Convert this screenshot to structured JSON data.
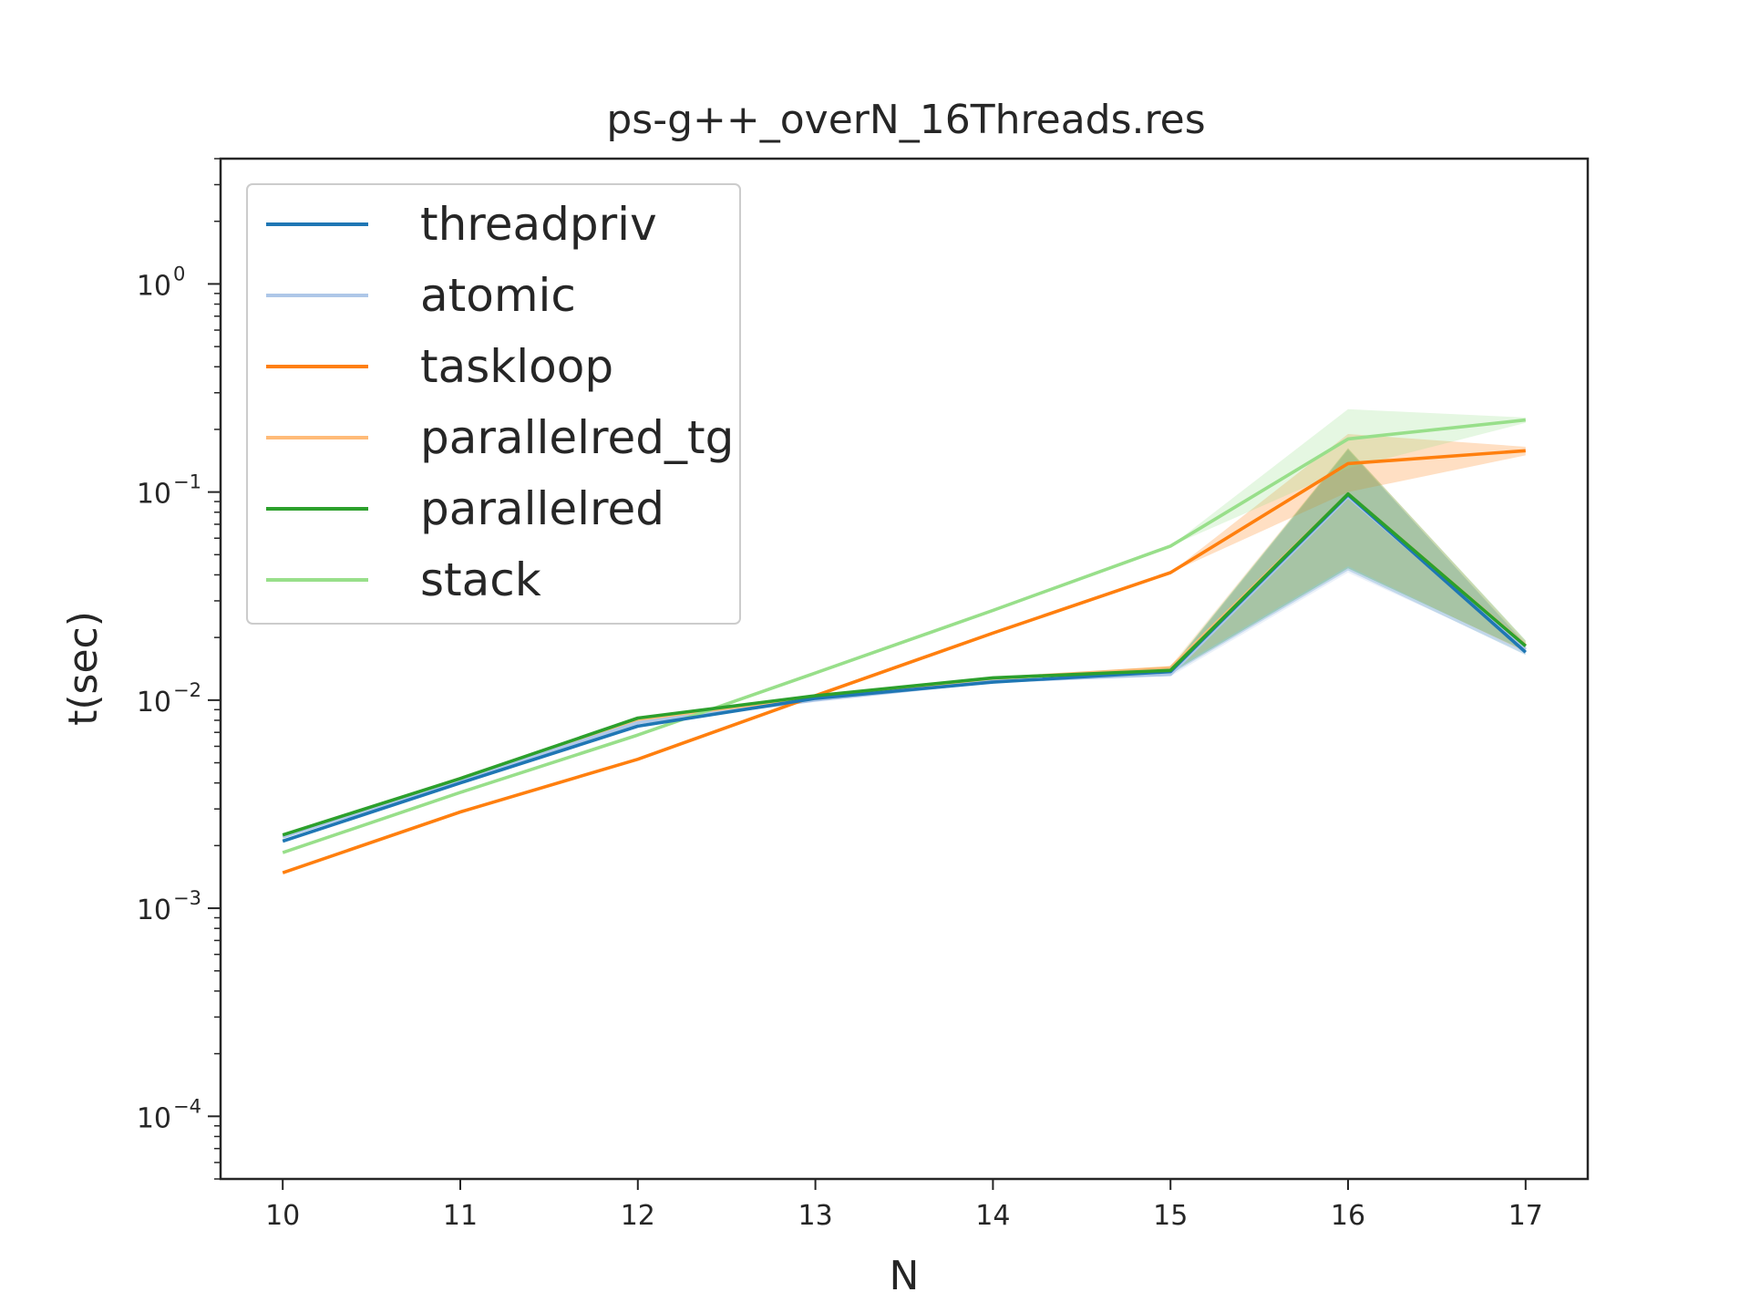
{
  "chart_data": {
    "type": "line",
    "title": "ps-g++_overN_16Threads.res",
    "xlabel": "N",
    "ylabel": "t(sec)",
    "yscale": "log",
    "xlim": [
      9.65,
      17.35
    ],
    "ylim": [
      5e-05,
      4.0
    ],
    "x": [
      10,
      11,
      12,
      13,
      14,
      15,
      16,
      17
    ],
    "x_ticks": [
      "10",
      "11",
      "12",
      "13",
      "14",
      "15",
      "16",
      "17"
    ],
    "y_ticks": [
      {
        "value": 0.0001,
        "base": "10",
        "exp": "−4"
      },
      {
        "value": 0.001,
        "base": "10",
        "exp": "−3"
      },
      {
        "value": 0.01,
        "base": "10",
        "exp": "−2"
      },
      {
        "value": 0.1,
        "base": "10",
        "exp": "−1"
      },
      {
        "value": 1,
        "base": "10",
        "exp": "0"
      }
    ],
    "legend": "upper-left",
    "grid": false,
    "series": [
      {
        "name": "threadpriv",
        "color": "#1f77b4",
        "values": [
          0.0021,
          0.004,
          0.0075,
          0.0102,
          0.0122,
          0.0137,
          0.097,
          0.017
        ],
        "band_low": [
          0.0021,
          0.004,
          0.0075,
          0.0102,
          0.0122,
          0.0133,
          0.042,
          0.0165
        ],
        "band_high": [
          0.0021,
          0.004,
          0.0075,
          0.0102,
          0.0122,
          0.0141,
          0.16,
          0.0185
        ]
      },
      {
        "name": "atomic",
        "color": "#aec7e8",
        "values": [
          0.0022,
          0.0041,
          0.0078,
          0.01,
          0.0123,
          0.0133,
          0.095,
          0.0175
        ],
        "band_low": [
          0.0022,
          0.0041,
          0.0078,
          0.01,
          0.0123,
          0.013,
          0.041,
          0.0168
        ],
        "band_high": [
          0.0022,
          0.0041,
          0.0078,
          0.01,
          0.0123,
          0.0138,
          0.158,
          0.0188
        ]
      },
      {
        "name": "taskloop",
        "color": "#ff7f0e",
        "values": [
          0.00148,
          0.0029,
          0.0052,
          0.0105,
          0.021,
          0.041,
          0.137,
          0.158
        ],
        "band_low": [
          0.00148,
          0.0029,
          0.0052,
          0.0105,
          0.021,
          0.041,
          0.1,
          0.15
        ],
        "band_high": [
          0.00148,
          0.0029,
          0.0052,
          0.0105,
          0.021,
          0.041,
          0.19,
          0.165
        ]
      },
      {
        "name": "parallelred_tg",
        "color": "#ffbb78",
        "values": [
          0.0022,
          0.0042,
          0.008,
          0.0104,
          0.0127,
          0.0143,
          0.098,
          0.0183
        ],
        "band_low": [
          0.0022,
          0.0042,
          0.008,
          0.0104,
          0.0127,
          0.0138,
          0.044,
          0.017
        ],
        "band_high": [
          0.0022,
          0.0042,
          0.008,
          0.0104,
          0.0127,
          0.0146,
          0.163,
          0.0192
        ]
      },
      {
        "name": "parallelred",
        "color": "#2ca02c",
        "values": [
          0.00225,
          0.0042,
          0.0082,
          0.0105,
          0.0128,
          0.0139,
          0.098,
          0.0182
        ],
        "band_low": [
          0.00225,
          0.0042,
          0.0082,
          0.0105,
          0.0128,
          0.0135,
          0.043,
          0.0172
        ],
        "band_high": [
          0.00225,
          0.0042,
          0.0082,
          0.0105,
          0.0128,
          0.0143,
          0.162,
          0.0194
        ]
      },
      {
        "name": "stack",
        "color": "#98df8a",
        "values": [
          0.00185,
          0.0036,
          0.0068,
          0.0135,
          0.027,
          0.055,
          0.18,
          0.222
        ],
        "band_low": [
          0.00185,
          0.0036,
          0.0068,
          0.0135,
          0.027,
          0.055,
          0.13,
          0.215
        ],
        "band_high": [
          0.00185,
          0.0036,
          0.0068,
          0.0135,
          0.027,
          0.055,
          0.25,
          0.228
        ]
      }
    ]
  }
}
